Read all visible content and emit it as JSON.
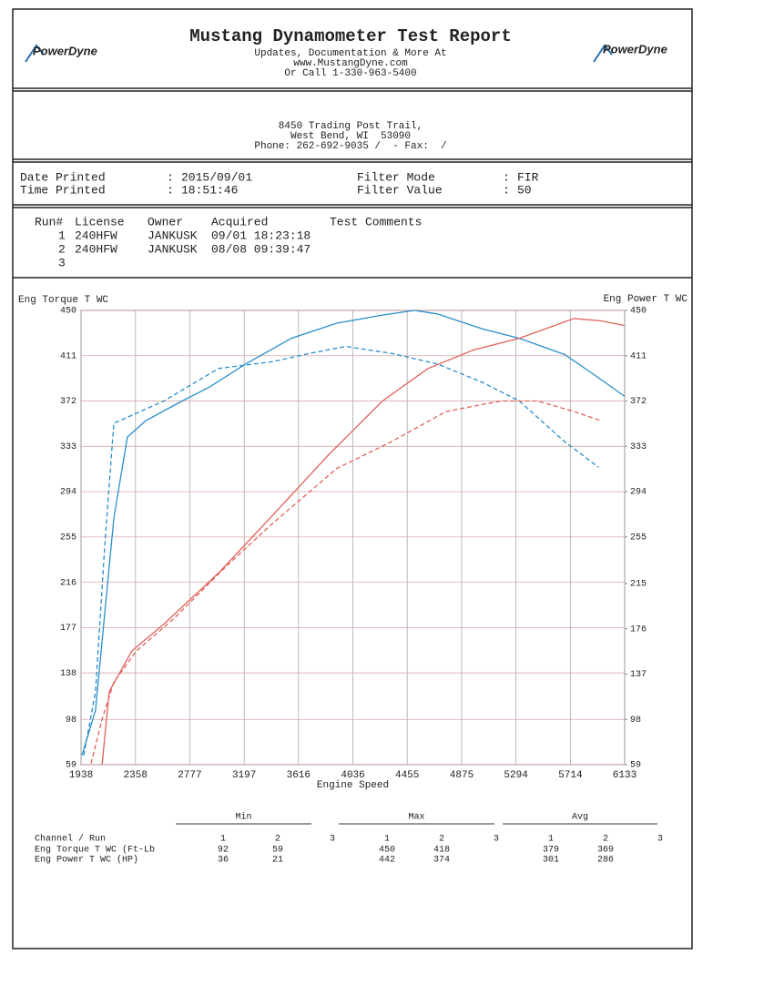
{
  "header": {
    "title": "Mustang Dynamometer Test Report",
    "lines": [
      "Updates, Documentation & More At",
      "www.MustangDyne.com",
      "Or Call 1-330-963-5400"
    ],
    "logo_text": "PowerDyne"
  },
  "address": {
    "lines": [
      "8450 Trading Post Trail,",
      "West Bend, WI  53090",
      "Phone: 262-692-9035 /  - Fax:  /"
    ]
  },
  "info": {
    "sep": ":",
    "left": [
      {
        "label": "Date Printed",
        "value": "2015/09/01"
      },
      {
        "label": "Time Printed",
        "value": "18:51:46"
      }
    ],
    "right": [
      {
        "label": "Filter Mode",
        "value": "FIR"
      },
      {
        "label": "Filter Value",
        "value": "50"
      }
    ]
  },
  "runs": {
    "columns": [
      "Run#",
      "License",
      "Owner",
      "Acquired",
      "Test Comments"
    ],
    "rows": [
      [
        "1",
        "240HFW",
        "JANKUSK",
        "09/01 18:23:18"
      ],
      [
        "2",
        "240HFW",
        "JANKUSK",
        "08/08 09:39:47"
      ],
      [
        "3"
      ]
    ]
  },
  "chart_data": {
    "type": "line",
    "y_label": "Eng Torque T WC",
    "y2_label": "Eng Power T WC",
    "x_label": "Engine Speed",
    "xlim": [
      1938,
      6133
    ],
    "xticks": [
      1938,
      2358,
      2777,
      3197,
      3616,
      4036,
      4455,
      4875,
      5294,
      5714,
      6133
    ],
    "ylim": [
      59,
      450
    ],
    "yticks": [
      59,
      98,
      138,
      177,
      216,
      255,
      294,
      333,
      372,
      411,
      450
    ],
    "y2lim": [
      59,
      450
    ],
    "y2ticks": [
      59,
      98,
      137,
      176,
      215,
      255,
      294,
      333,
      372,
      411,
      450
    ],
    "grid": true,
    "series": [
      {
        "color": "#2a8ecb",
        "line_style": "solid",
        "x": [
          1945,
          2050,
          2191,
          2296,
          2437,
          2718,
          2929,
          3210,
          3561,
          3912,
          4264,
          4510,
          4686,
          5037,
          5320,
          5670,
          5880,
          6133
        ],
        "values": [
          67,
          106,
          271,
          341,
          355,
          372,
          384,
          404,
          426,
          439,
          446,
          450,
          447,
          434,
          426,
          412,
          396,
          376
        ]
      },
      {
        "color": "#2a8ecb",
        "line_style": "dashed",
        "x": [
          1959,
          2050,
          2121,
          2191,
          2296,
          2577,
          2999,
          3420,
          3701,
          3982,
          4334,
          4686,
          5037,
          5320,
          5670,
          5932
        ],
        "values": [
          67,
          122,
          247,
          353,
          358,
          372,
          400,
          406,
          413,
          419,
          413,
          404,
          388,
          372,
          337,
          315
        ]
      },
      {
        "color": "#e0605a",
        "line_style": "solid",
        "axis": "y2",
        "x": [
          2100,
          2156,
          2331,
          2577,
          2999,
          3420,
          3842,
          4264,
          4615,
          4967,
          5320,
          5741,
          5951,
          6133
        ],
        "values": [
          59,
          122,
          157,
          180,
          224,
          274,
          325,
          372,
          400,
          416,
          426,
          443,
          441,
          437
        ]
      },
      {
        "color": "#e0605a",
        "line_style": "dashed",
        "axis": "y2",
        "x": [
          2015,
          2100,
          2191,
          2366,
          2648,
          3069,
          3420,
          3912,
          4334,
          4756,
          5178,
          5460,
          5741,
          5951
        ],
        "values": [
          60,
          98,
          130,
          157,
          184,
          231,
          267,
          314,
          337,
          363,
          372,
          372,
          363,
          355
        ]
      }
    ]
  },
  "summary": {
    "groups": [
      "Min",
      "Max",
      "Avg"
    ],
    "channel_header": "Channel / Run",
    "runs": [
      "1",
      "2",
      "3"
    ],
    "rows": [
      {
        "label": "Eng Torque T WC (Ft-Lb",
        "color": "#2a8ecb",
        "min": [
          92,
          59
        ],
        "max": [
          450,
          418
        ],
        "avg": [
          379,
          369
        ]
      },
      {
        "label": "Eng Power T WC (HP)",
        "color": "#e0605a",
        "min": [
          36,
          21
        ],
        "max": [
          442,
          374
        ],
        "avg": [
          301,
          286
        ]
      }
    ]
  }
}
